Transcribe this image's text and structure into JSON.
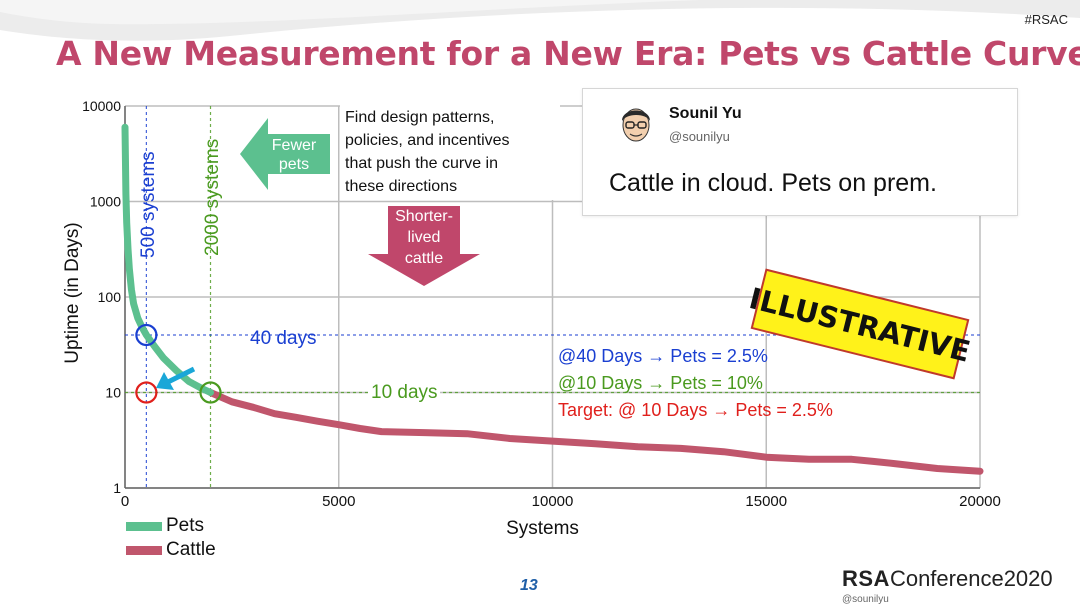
{
  "header": {
    "hashtag": "#RSAC",
    "title": "A New Measurement for a New Era: Pets vs Cattle Curve"
  },
  "tweet": {
    "name": "Sounil Yu",
    "handle": "@sounilyu",
    "text": "Cattle in cloud. Pets on prem."
  },
  "footer": {
    "page_number": "13",
    "brand_bold": "RSA",
    "brand_thin": "Conference2020",
    "handle": "@sounilyu"
  },
  "colors": {
    "pets": "#5cc08f",
    "cattle": "#c0566c",
    "title": "#c0476b",
    "blue": "#1a3fd1",
    "green": "#4a9a1f",
    "red": "#e0201c",
    "arrow_green": "#5cc08f",
    "arrow_red": "#c0476b",
    "cyan_arrow": "#1aa7d8",
    "stamp_yellow": "#fff21a"
  },
  "chart_data": {
    "type": "line",
    "xlabel": "Systems",
    "ylabel": "Uptime (in Days)",
    "xlim": [
      0,
      20000
    ],
    "ylim": [
      1,
      10000
    ],
    "yscale": "log",
    "grid": true,
    "x_ticks": [
      0,
      5000,
      10000,
      15000,
      20000
    ],
    "x_tick_labels": [
      "0",
      "5000",
      "10000",
      "15000",
      "20000"
    ],
    "y_ticks": [
      1,
      10,
      100,
      1000,
      10000
    ],
    "y_tick_labels": [
      "1",
      "10",
      "100",
      "1000",
      "10000"
    ],
    "legend_position": "bottom-left",
    "series": [
      {
        "name": "Pets",
        "x": [
          0,
          20,
          40,
          70,
          100,
          150,
          200,
          300,
          400,
          500,
          700,
          900,
          1200,
          1500,
          1800,
          2000
        ],
        "y": [
          6000,
          1200,
          600,
          320,
          200,
          120,
          85,
          60,
          48,
          40,
          30,
          23,
          17,
          13,
          11,
          10
        ]
      },
      {
        "name": "Cattle",
        "x": [
          2000,
          2500,
          3000,
          3500,
          4000,
          4500,
          5000,
          5500,
          6000,
          7000,
          8000,
          9000,
          10000,
          11000,
          12000,
          13000,
          14000,
          15000,
          16000,
          17000,
          17500,
          18000,
          19000,
          20000
        ],
        "y": [
          10,
          8,
          7,
          6,
          5.5,
          5,
          4.6,
          4.2,
          3.9,
          3.8,
          3.7,
          3.3,
          3.1,
          2.9,
          2.7,
          2.6,
          2.4,
          2.1,
          2.0,
          2.0,
          1.9,
          1.8,
          1.6,
          1.5
        ]
      }
    ],
    "vertical_markers": [
      {
        "x": 500,
        "label": "500 systems",
        "color": "blue"
      },
      {
        "x": 2000,
        "label": "2000 systems",
        "color": "green"
      }
    ],
    "horizontal_markers": [
      {
        "y": 40,
        "label": "40 days",
        "color": "blue"
      },
      {
        "y": 10,
        "label": "10 days",
        "color": "green"
      }
    ],
    "circles": [
      {
        "x": 500,
        "y": 40,
        "color": "blue"
      },
      {
        "x": 2000,
        "y": 10,
        "color": "green"
      },
      {
        "x": 500,
        "y": 10,
        "color": "red"
      }
    ],
    "annotations": {
      "design_text": [
        "Find design patterns,",
        "policies, and incentives",
        "that push the curve in",
        "these directions"
      ],
      "fewer_pets": [
        "Fewer",
        "pets"
      ],
      "shorter_lived": [
        "Shorter-",
        "lived",
        "cattle"
      ],
      "stamp": "ILLUSTRATIVE",
      "stat1": "@40 Days → Pets = 2.5%",
      "stat2": "@10 Days → Pets = 10%",
      "stat3": "Target: @ 10 Days → Pets = 2.5%"
    }
  }
}
